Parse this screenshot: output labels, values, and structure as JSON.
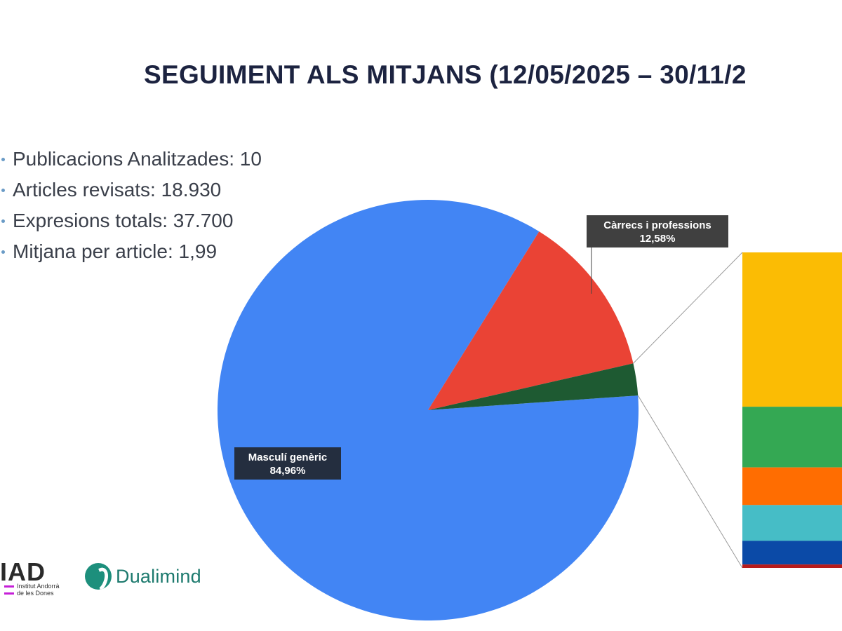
{
  "title": "SEGUIMENT ALS MITJANS (12/05/2025 – 30/11/2",
  "stats": [
    "Publicacions Analitzades: 10",
    "Articles revisats: 18.930",
    "Expresions totals: 37.700",
    "Mitjana per article: 1,99"
  ],
  "chart_data": {
    "type": "pie",
    "slices": [
      {
        "label": "Masculí genèric",
        "value": 84.96,
        "value_label": "84,96%",
        "color": "#4285f4"
      },
      {
        "label": "Càrrecs i professions",
        "value": 12.58,
        "value_label": "12,58%",
        "color": "#ea4335"
      },
      {
        "label": "",
        "value": 2.46,
        "value_label": "",
        "color": "#1e5a32"
      }
    ],
    "breakdown_bar": {
      "segments": [
        {
          "value": 49.6,
          "color": "#fbbc04"
        },
        {
          "value": 19.5,
          "color": "#34a853"
        },
        {
          "value": 12.1,
          "color": "#ff6d01"
        },
        {
          "value": 11.5,
          "color": "#46bdc6"
        },
        {
          "value": 7.6,
          "color": "#0b4aa7"
        },
        {
          "value": 1.1,
          "color": "#b71c1c"
        }
      ]
    }
  },
  "logos": {
    "iad": {
      "letters": "IAD",
      "line1": "Institut Andorrà",
      "line2": "de les Dones"
    },
    "dualimind": {
      "name": "Dualimind"
    }
  }
}
